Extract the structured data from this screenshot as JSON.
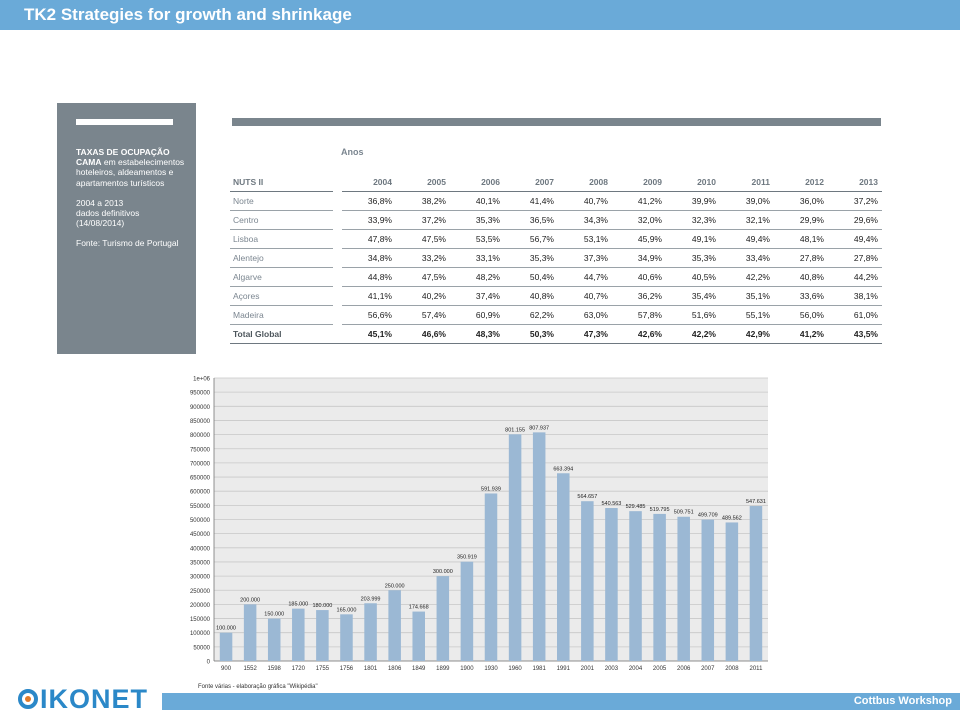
{
  "header": {
    "title": "TK2 Strategies for growth and shrinkage"
  },
  "sidebar_box": {
    "title_bold": "TAXAS DE OCUPAÇÃO CAMA",
    "title_rest": " em estabelecimentos hoteleiros, aldeamentos e apartamentos turísticos",
    "period": "2004 a 2013",
    "definitive": "dados definitivos",
    "date": "(14/08/2014)",
    "source": "Fonte: Turismo de Portugal"
  },
  "table": {
    "group_label": "Anos",
    "region_header": "NUTS II",
    "years": [
      "2004",
      "2005",
      "2006",
      "2007",
      "2008",
      "2009",
      "2010",
      "2011",
      "2012",
      "2013"
    ],
    "rows": [
      {
        "region": "Norte",
        "values": [
          "36,8%",
          "38,2%",
          "40,1%",
          "41,4%",
          "40,7%",
          "41,2%",
          "39,9%",
          "39,0%",
          "36,0%",
          "37,2%"
        ]
      },
      {
        "region": "Centro",
        "values": [
          "33,9%",
          "37,2%",
          "35,3%",
          "36,5%",
          "34,3%",
          "32,0%",
          "32,3%",
          "32,1%",
          "29,9%",
          "29,6%"
        ]
      },
      {
        "region": "Lisboa",
        "values": [
          "47,8%",
          "47,5%",
          "53,5%",
          "56,7%",
          "53,1%",
          "45,9%",
          "49,1%",
          "49,4%",
          "48,1%",
          "49,4%"
        ]
      },
      {
        "region": "Alentejo",
        "values": [
          "34,8%",
          "33,2%",
          "33,1%",
          "35,3%",
          "37,3%",
          "34,9%",
          "35,3%",
          "33,4%",
          "27,8%",
          "27,8%"
        ]
      },
      {
        "region": "Algarve",
        "values": [
          "44,8%",
          "47,5%",
          "48,2%",
          "50,4%",
          "44,7%",
          "40,6%",
          "40,5%",
          "42,2%",
          "40,8%",
          "44,2%"
        ]
      },
      {
        "region": "Açores",
        "values": [
          "41,1%",
          "40,2%",
          "37,4%",
          "40,8%",
          "40,7%",
          "36,2%",
          "35,4%",
          "35,1%",
          "33,6%",
          "38,1%"
        ]
      },
      {
        "region": "Madeira",
        "values": [
          "56,6%",
          "57,4%",
          "60,9%",
          "62,2%",
          "63,0%",
          "57,8%",
          "51,6%",
          "55,1%",
          "56,0%",
          "61,0%"
        ]
      }
    ],
    "total": {
      "region": "Total Global",
      "values": [
        "45,1%",
        "46,6%",
        "48,3%",
        "50,3%",
        "47,3%",
        "42,6%",
        "42,2%",
        "42,9%",
        "41,2%",
        "43,5%"
      ]
    }
  },
  "chart_data": {
    "type": "bar",
    "title": "",
    "xlabel": "",
    "ylabel": "",
    "ylim": [
      0,
      1000000
    ],
    "y_ticks": [
      "0",
      "50000",
      "100000",
      "150000",
      "200000",
      "250000",
      "300000",
      "350000",
      "400000",
      "450000",
      "500000",
      "550000",
      "600000",
      "650000",
      "700000",
      "750000",
      "800000",
      "850000",
      "900000",
      "950000",
      "1e+06"
    ],
    "y_tick_values": [
      0,
      50000,
      100000,
      150000,
      200000,
      250000,
      300000,
      350000,
      400000,
      450000,
      500000,
      550000,
      600000,
      650000,
      700000,
      750000,
      800000,
      850000,
      900000,
      950000,
      1000000
    ],
    "grid": true,
    "bar_color": "#9bb8d4",
    "categories": [
      "900",
      "1552",
      "1598",
      "1720",
      "1755",
      "1756",
      "1801",
      "1806",
      "1849",
      "1899",
      "1900",
      "1930",
      "1960",
      "1981",
      "1991",
      "2001",
      "2003",
      "2004",
      "2005",
      "2006",
      "2007",
      "2008",
      "2011"
    ],
    "values": [
      100000,
      200000,
      150000,
      185000,
      180000,
      165000,
      203999,
      250000,
      174668,
      300000,
      350919,
      591939,
      801155,
      807937,
      663394,
      564657,
      540563,
      529485,
      519795,
      509751,
      499709,
      489562,
      547631
    ],
    "value_labels": [
      "100.000",
      "200.000",
      "150.000",
      "185.000",
      "180.000",
      "165.000",
      "203.999",
      "250.000",
      "174.668",
      "300.000",
      "350.919",
      "591.939",
      "801.155",
      "807.937",
      "663.394",
      "564.657",
      "540.563",
      "529.485",
      "519.795",
      "509.751",
      "499.709",
      "489.562",
      "547.631"
    ],
    "caption": "Fonte várias - elaboração gráfica \"Wikipédia\""
  },
  "footer": {
    "logo_text": "IKONET",
    "workshop": "Cottbus Workshop"
  }
}
